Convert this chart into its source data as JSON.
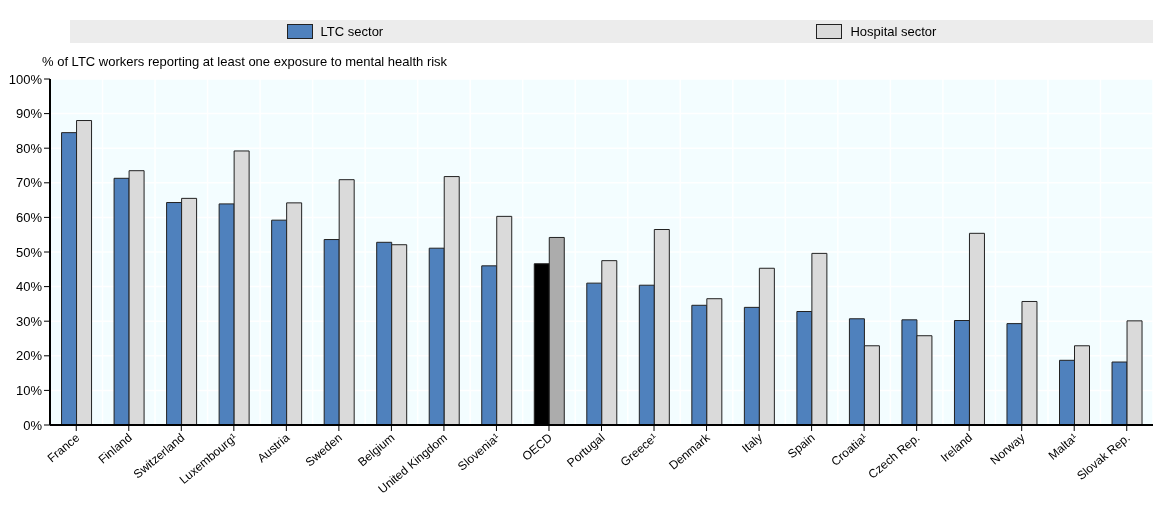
{
  "chart_data": {
    "type": "bar",
    "ylabel": "% of LTC workers reporting at least one exposure to mental health risk",
    "categories": [
      "France",
      "Finland",
      "Switzerland",
      "Luxembourg¹",
      "Austria",
      "Sweden",
      "Belgium",
      "United Kingdom",
      "Slovenia¹",
      "OECD",
      "Portugal",
      "Greece¹",
      "Denmark",
      "Italy",
      "Spain",
      "Croatia¹",
      "Czech Rep.",
      "Ireland",
      "Norway",
      "Malta¹",
      "Slovak Rep."
    ],
    "series": [
      {
        "name": "LTC sector",
        "color": "#4f81bd",
        "colors": [
          "#4f81bd",
          "#4f81bd",
          "#4f81bd",
          "#4f81bd",
          "#4f81bd",
          "#4f81bd",
          "#4f81bd",
          "#4f81bd",
          "#4f81bd",
          "#000000",
          "#4f81bd",
          "#4f81bd",
          "#4f81bd",
          "#4f81bd",
          "#4f81bd",
          "#4f81bd",
          "#4f81bd",
          "#4f81bd",
          "#4f81bd",
          "#4f81bd",
          "#4f81bd"
        ],
        "values": [
          84.5,
          71.3,
          64.3,
          63.9,
          59.2,
          53.6,
          52.8,
          51.1,
          46.0,
          46.6,
          41.0,
          40.4,
          34.6,
          34.0,
          32.8,
          30.7,
          30.4,
          30.2,
          29.3,
          18.7,
          18.2
        ]
      },
      {
        "name": "Hospital sector",
        "color": "#dadada",
        "colors": [
          "#dadada",
          "#dadada",
          "#dadada",
          "#dadada",
          "#dadada",
          "#dadada",
          "#dadada",
          "#dadada",
          "#dadada",
          "#acacac",
          "#dadada",
          "#dadada",
          "#dadada",
          "#dadada",
          "#dadada",
          "#dadada",
          "#dadada",
          "#dadada",
          "#dadada",
          "#dadada",
          "#dadada"
        ],
        "values": [
          88.0,
          73.5,
          65.5,
          79.2,
          64.2,
          70.9,
          52.1,
          71.8,
          60.3,
          54.2,
          47.5,
          56.5,
          36.5,
          45.3,
          49.6,
          22.9,
          25.8,
          55.4,
          35.7,
          22.9,
          30.1
        ]
      }
    ],
    "ylim": [
      0,
      100
    ],
    "yticks": [
      {
        "value": 0,
        "label": "0%"
      },
      {
        "value": 10,
        "label": "10%"
      },
      {
        "value": 20,
        "label": "20%"
      },
      {
        "value": 30,
        "label": "30%"
      },
      {
        "value": 40,
        "label": "40%"
      },
      {
        "value": 50,
        "label": "50%"
      },
      {
        "value": 60,
        "label": "60%"
      },
      {
        "value": 70,
        "label": "70%"
      },
      {
        "value": 80,
        "label": "80%"
      },
      {
        "value": 90,
        "label": "90%"
      },
      {
        "value": 100,
        "label": "100%"
      }
    ],
    "grid": true,
    "legend": "top"
  }
}
